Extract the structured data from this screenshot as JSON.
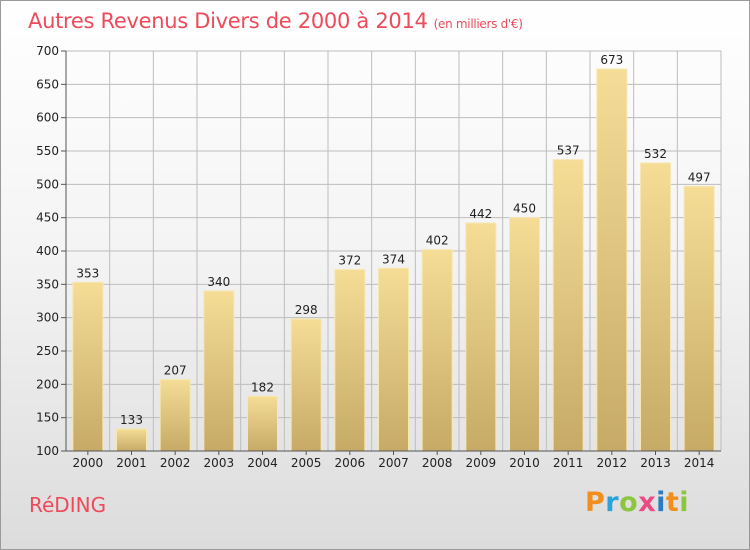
{
  "header": {
    "title": "Autres Revenus Divers de 2000 à 2014",
    "subtitle": "(en milliers d'€)"
  },
  "footer": {
    "commune": "RéDING",
    "logo_text": "Proxiti",
    "logo_colors": [
      "#f28e1c",
      "#29a3d8",
      "#8cc63f",
      "#ec4a84",
      "#2a7bc4",
      "#f28e1c",
      "#8cc63f"
    ]
  },
  "colors": {
    "accent": "#ee4a5a",
    "bar_light": "#f3db95",
    "bar_dark": "#c8ad6a",
    "grid": "#bdbdbd"
  },
  "chart_data": {
    "type": "bar",
    "title": "Autres Revenus Divers de 2000 à 2014",
    "subtitle": "(en milliers d'€)",
    "categories": [
      "2000",
      "2001",
      "2002",
      "2003",
      "2004",
      "2005",
      "2006",
      "2007",
      "2008",
      "2009",
      "2010",
      "2011",
      "2012",
      "2013",
      "2014"
    ],
    "values": [
      353,
      133,
      207,
      340,
      182,
      298,
      372,
      374,
      402,
      442,
      450,
      537,
      673,
      532,
      497
    ],
    "ylim": [
      100,
      700
    ],
    "yticks": [
      100,
      150,
      200,
      250,
      300,
      350,
      400,
      450,
      500,
      550,
      600,
      650,
      700
    ],
    "grid": true,
    "data_labels": true
  }
}
